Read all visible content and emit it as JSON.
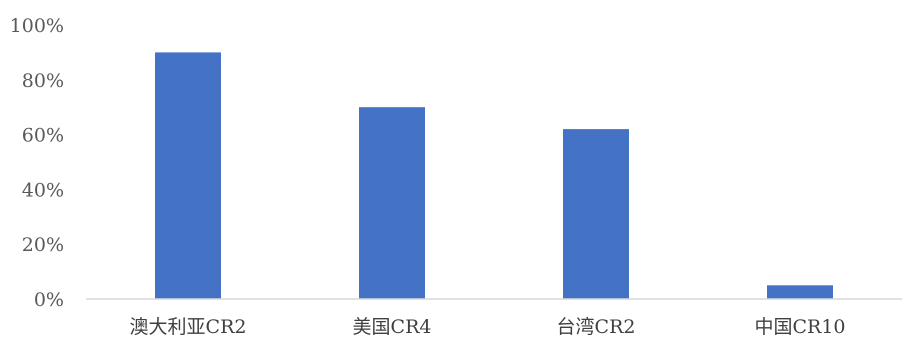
{
  "chart_data": {
    "type": "bar",
    "categories": [
      "澳大利亚CR2",
      "美国CR4",
      "台湾CR2",
      "中国CR10"
    ],
    "values": [
      90,
      70,
      62,
      5
    ],
    "ylim": [
      0,
      100
    ],
    "yticks": [
      0,
      20,
      40,
      60,
      80,
      100
    ],
    "ytick_labels": [
      "0%",
      "20%",
      "40%",
      "60%",
      "80%",
      "100%"
    ],
    "y_unit": "%",
    "grid": false,
    "legend": "none",
    "colors": {
      "bar": "#4472C4",
      "axis": "#D9D9D9"
    }
  }
}
